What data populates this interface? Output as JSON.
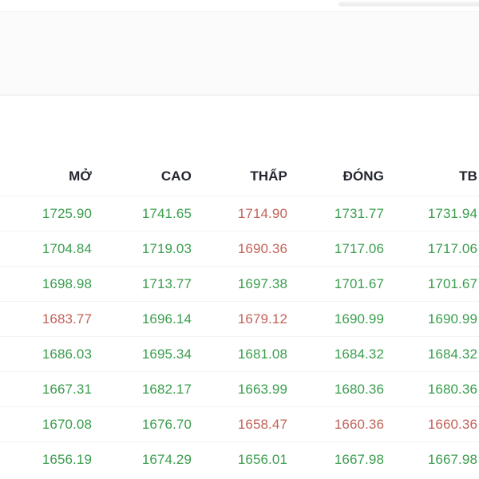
{
  "theme": {
    "up": "#3a9d4d",
    "down": "#c2635a",
    "header": "#23262f"
  },
  "table": {
    "columns": [
      "MỞ",
      "CAO",
      "THẤP",
      "ĐÓNG",
      "TB"
    ],
    "rows": [
      {
        "values": [
          "1725.90",
          "1741.65",
          "1714.90",
          "1731.77",
          "1731.94"
        ],
        "dirs": [
          "up",
          "up",
          "down",
          "up",
          "up"
        ]
      },
      {
        "values": [
          "1704.84",
          "1719.03",
          "1690.36",
          "1717.06",
          "1717.06"
        ],
        "dirs": [
          "up",
          "up",
          "down",
          "up",
          "up"
        ]
      },
      {
        "values": [
          "1698.98",
          "1713.77",
          "1697.38",
          "1701.67",
          "1701.67"
        ],
        "dirs": [
          "up",
          "up",
          "up",
          "up",
          "up"
        ]
      },
      {
        "values": [
          "1683.77",
          "1696.14",
          "1679.12",
          "1690.99",
          "1690.99"
        ],
        "dirs": [
          "down",
          "up",
          "down",
          "up",
          "up"
        ]
      },
      {
        "values": [
          "1686.03",
          "1695.34",
          "1681.08",
          "1684.32",
          "1684.32"
        ],
        "dirs": [
          "up",
          "up",
          "up",
          "up",
          "up"
        ]
      },
      {
        "values": [
          "1667.31",
          "1682.17",
          "1663.99",
          "1680.36",
          "1680.36"
        ],
        "dirs": [
          "up",
          "up",
          "up",
          "up",
          "up"
        ]
      },
      {
        "values": [
          "1670.08",
          "1676.70",
          "1658.47",
          "1660.36",
          "1660.36"
        ],
        "dirs": [
          "up",
          "up",
          "down",
          "down",
          "down"
        ]
      },
      {
        "values": [
          "1656.19",
          "1674.29",
          "1656.01",
          "1667.98",
          "1667.98"
        ],
        "dirs": [
          "up",
          "up",
          "up",
          "up",
          "up"
        ]
      }
    ]
  }
}
